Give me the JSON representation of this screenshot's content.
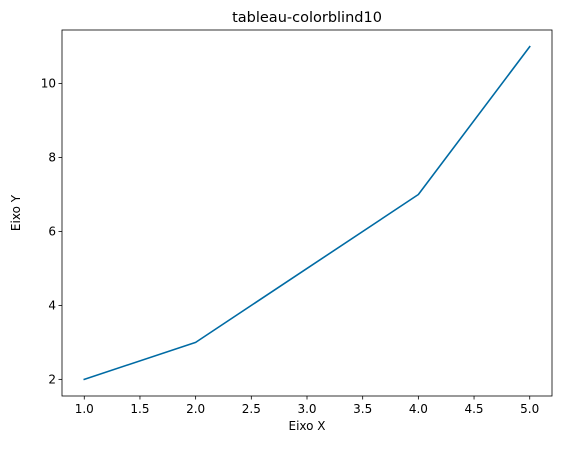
{
  "chart_data": {
    "type": "line",
    "title": "tableau-colorblind10",
    "xlabel": "Eixo X",
    "ylabel": "Eixo Y",
    "x": [
      1,
      2,
      3,
      4,
      5
    ],
    "series": [
      {
        "values": [
          2,
          3,
          5,
          7,
          11
        ],
        "color": "#006BA4"
      }
    ],
    "xlim": [
      0.8,
      5.2
    ],
    "ylim": [
      1.55,
      11.45
    ],
    "xticks": [
      1.0,
      1.5,
      2.0,
      2.5,
      3.0,
      3.5,
      4.0,
      4.5,
      5.0
    ],
    "xtick_labels": [
      "1.0",
      "1.5",
      "2.0",
      "2.5",
      "3.0",
      "3.5",
      "4.0",
      "4.5",
      "5.0"
    ],
    "yticks": [
      2,
      4,
      6,
      8,
      10
    ],
    "ytick_labels": [
      "2",
      "4",
      "6",
      "8",
      "10"
    ],
    "grid": false,
    "legend": "none"
  }
}
